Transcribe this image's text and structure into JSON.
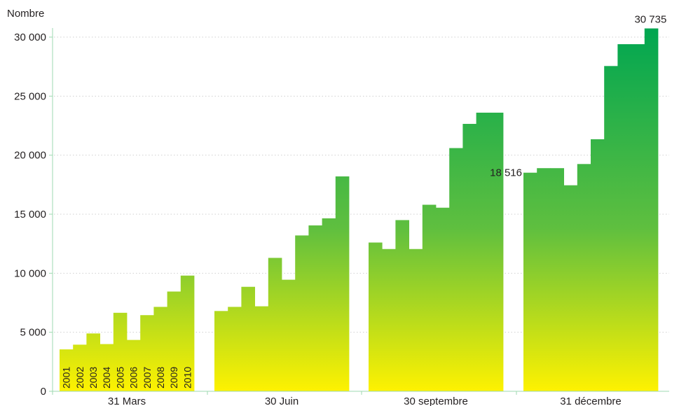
{
  "chart_data": {
    "type": "bar",
    "title": "",
    "xlabel": "",
    "ylabel": "Nombre",
    "ylim": [
      0,
      31000
    ],
    "yticks": [
      0,
      5000,
      10000,
      15000,
      20000,
      25000,
      30000
    ],
    "ytick_labels": [
      "0",
      "5 000",
      "10 000",
      "15 000",
      "20 000",
      "25 000",
      "30 000"
    ],
    "grid": true,
    "colors": {
      "bar_top": "#00a651",
      "bar_bottom": "#fff200",
      "grid": "#cfcfcf",
      "axis": "#9ed9b0"
    },
    "categories": [
      "31 Mars",
      "30 Juin",
      "30 septembre",
      "31 décembre"
    ],
    "series_labels": [
      "2001",
      "2002",
      "2003",
      "2004",
      "2005",
      "2006",
      "2007",
      "2008",
      "2009",
      "2010"
    ],
    "series": [
      {
        "name": "2001",
        "values": [
          3550,
          6800,
          12600,
          18516
        ]
      },
      {
        "name": "2002",
        "values": [
          3950,
          7150,
          12050,
          18900
        ]
      },
      {
        "name": "2003",
        "values": [
          4900,
          8850,
          14500,
          18900
        ]
      },
      {
        "name": "2004",
        "values": [
          4000,
          7200,
          12050,
          17450
        ]
      },
      {
        "name": "2005",
        "values": [
          6650,
          11300,
          15800,
          19250
        ]
      },
      {
        "name": "2006",
        "values": [
          4350,
          9450,
          15550,
          21350
        ]
      },
      {
        "name": "2007",
        "values": [
          6450,
          13200,
          20600,
          27550
        ]
      },
      {
        "name": "2008",
        "values": [
          7150,
          14050,
          22650,
          29400
        ]
      },
      {
        "name": "2009",
        "values": [
          8450,
          14650,
          23600,
          29400
        ]
      },
      {
        "name": "2010",
        "values": [
          9800,
          18200,
          23600,
          30735
        ]
      }
    ],
    "annotations": [
      {
        "category": "31 décembre",
        "series": "2001",
        "text": "18 516"
      },
      {
        "category": "31 décembre",
        "series": "2010",
        "text": "30 735"
      }
    ]
  }
}
